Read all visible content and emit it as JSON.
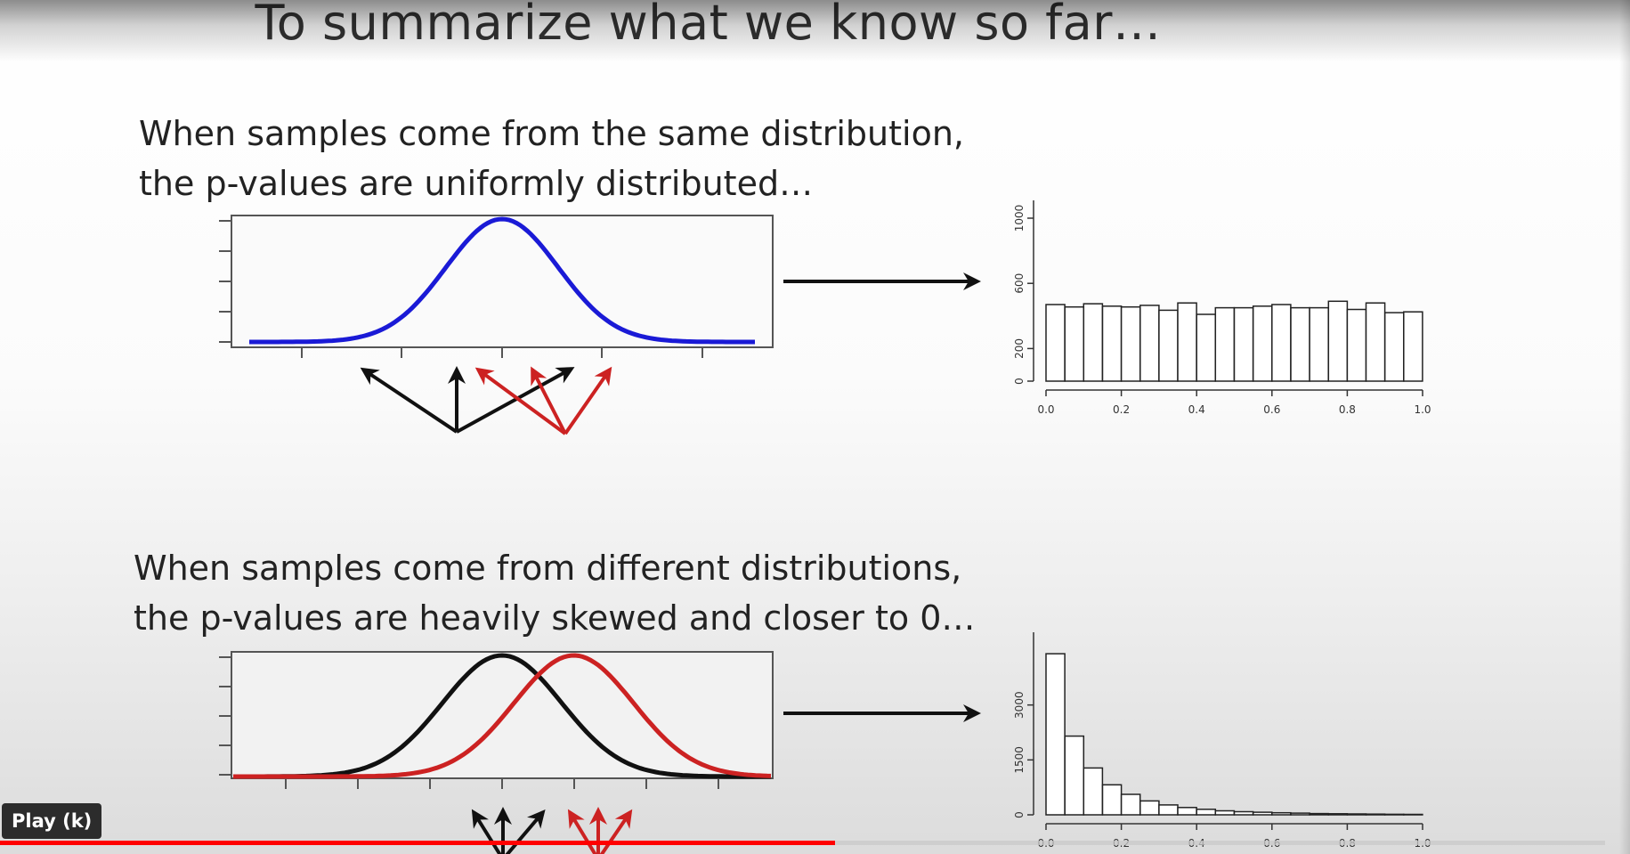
{
  "slide": {
    "title": "To summarize what we know so far…",
    "top_caption": {
      "line1": "When samples come from the same distribution,",
      "line2": "the p-values are uniformly distributed…"
    },
    "bottom_caption": {
      "line1": "When samples come from different distributions,",
      "line2": "the p-values are heavily skewed and closer to 0…"
    }
  },
  "player": {
    "tooltip": "Play (k)",
    "progress_fraction": 0.52
  },
  "colors": {
    "blue_curve": "#1a1ad6",
    "red_curve": "#cc2222",
    "black_curve": "#111111",
    "progress": "#ff0000"
  },
  "chart_data": [
    {
      "type": "line",
      "description_of_marks": "single normal density curve",
      "series": [
        {
          "color": "blue",
          "mean": 0,
          "sd": 1
        }
      ],
      "xlim": [
        -4.5,
        4.5
      ]
    },
    {
      "type": "bar",
      "categories": [
        "0.0",
        "0.05",
        "0.1",
        "0.15",
        "0.2",
        "0.25",
        "0.3",
        "0.35",
        "0.4",
        "0.45",
        "0.5",
        "0.55",
        "0.6",
        "0.65",
        "0.7",
        "0.75",
        "0.8",
        "0.85",
        "0.9",
        "0.95"
      ],
      "values": [
        470,
        455,
        475,
        460,
        455,
        465,
        435,
        480,
        410,
        450,
        450,
        460,
        470,
        450,
        450,
        490,
        440,
        480,
        420,
        425
      ],
      "xticks": [
        "0.0",
        "0.2",
        "0.4",
        "0.6",
        "0.8",
        "1.0"
      ],
      "yticks": [
        "0",
        "200",
        "600",
        "1000"
      ],
      "ylim": [
        0,
        1000
      ],
      "xlim": [
        0,
        1
      ]
    },
    {
      "type": "line",
      "description_of_marks": "two normal density curves",
      "series": [
        {
          "color": "black",
          "mean": 0,
          "sd": 1
        },
        {
          "color": "red",
          "mean": 1.2,
          "sd": 1
        }
      ],
      "xlim": [
        -4.5,
        4.5
      ]
    },
    {
      "type": "bar",
      "categories": [
        "0.0",
        "0.05",
        "0.1",
        "0.15",
        "0.2",
        "0.25",
        "0.3",
        "0.35",
        "0.4",
        "0.45",
        "0.5",
        "0.55",
        "0.6",
        "0.65",
        "0.7",
        "0.75",
        "0.8",
        "0.85",
        "0.9",
        "0.95"
      ],
      "values": [
        4400,
        2150,
        1280,
        820,
        560,
        380,
        270,
        200,
        150,
        110,
        85,
        70,
        55,
        45,
        35,
        30,
        25,
        20,
        15,
        12
      ],
      "xticks": [
        "0.0",
        "0.2",
        "0.4",
        "0.6",
        "0.8",
        "1.0"
      ],
      "yticks": [
        "0",
        "1500",
        "3000"
      ],
      "ylim": [
        0,
        4500
      ],
      "xlim": [
        0,
        1
      ]
    }
  ]
}
